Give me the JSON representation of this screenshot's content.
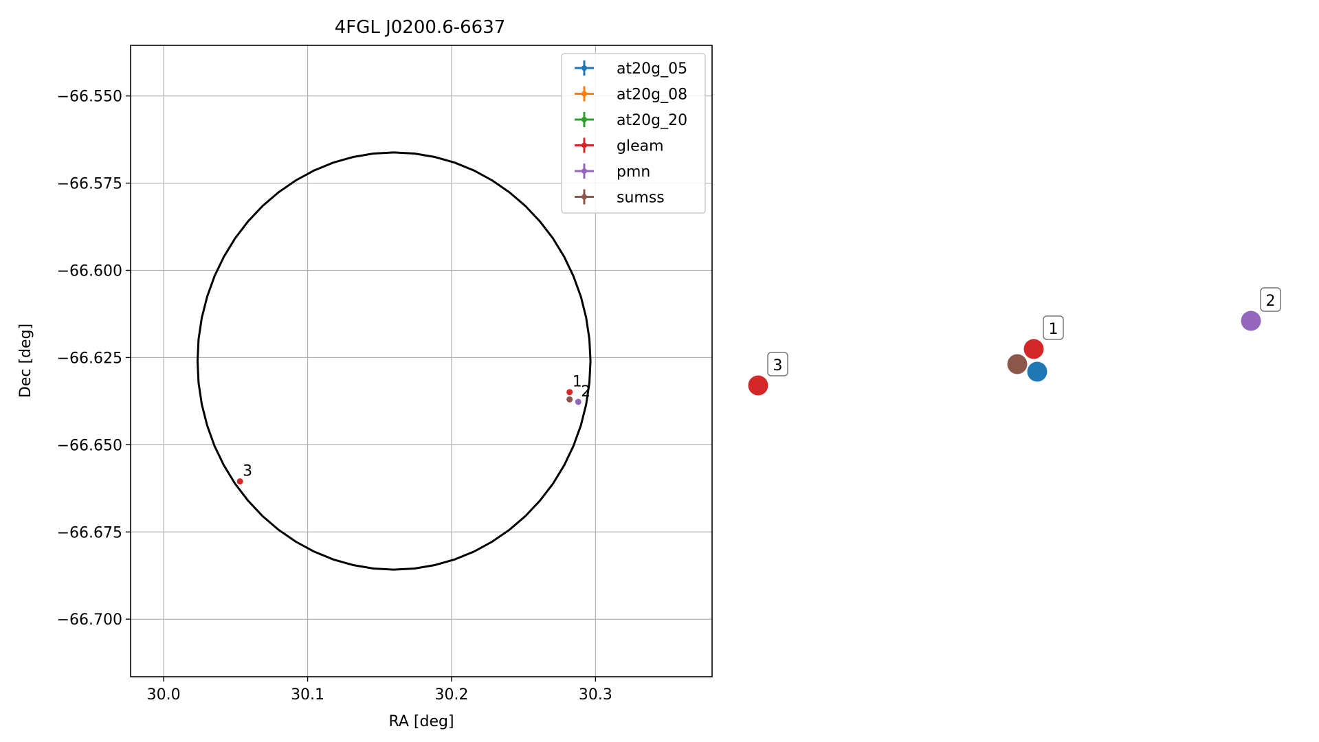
{
  "chart_data": [
    {
      "type": "scatter",
      "title": "4FGL J0200.6-6637",
      "xlabel": "RA [deg]",
      "ylabel": "Dec [deg]",
      "xlim": [
        29.977,
        30.381
      ],
      "ylim": [
        -66.7165,
        -66.5355
      ],
      "grid": true,
      "x_ticks": [
        30.0,
        30.1,
        30.2,
        30.3
      ],
      "x_tick_labels": [
        "30.0",
        "30.1",
        "30.2",
        "30.3"
      ],
      "y_ticks": [
        -66.55,
        -66.575,
        -66.6,
        -66.625,
        -66.65,
        -66.675,
        -66.7
      ],
      "y_tick_labels": [
        "−66.550",
        "−66.575",
        "−66.600",
        "−66.625",
        "−66.650",
        "−66.675",
        "−66.700"
      ],
      "legend_position": "top-right",
      "ellipse": {
        "center": [
          30.16,
          -66.626
        ],
        "semi_axis_ra": 0.1365,
        "semi_axis_dec": 0.0598,
        "color": "#000000"
      },
      "series": [
        {
          "name": "at20g_05",
          "color": "#1f77b4",
          "points": []
        },
        {
          "name": "at20g_08",
          "color": "#ff7f0e",
          "points": []
        },
        {
          "name": "at20g_20",
          "color": "#2ca02c",
          "points": []
        },
        {
          "name": "gleam",
          "color": "#d62728",
          "points": [
            {
              "ra": 30.282,
              "dec": -66.6349,
              "label": "1"
            },
            {
              "ra": 30.053,
              "dec": -66.6605,
              "label": "3"
            }
          ]
        },
        {
          "name": "pmn",
          "color": "#9467bd",
          "points": [
            {
              "ra": 30.288,
              "dec": -66.6377,
              "label": "2"
            }
          ]
        },
        {
          "name": "sumss",
          "color": "#8c564b",
          "points": [
            {
              "ra": 30.282,
              "dec": -66.637,
              "label": ""
            }
          ]
        }
      ]
    },
    {
      "type": "scatter",
      "title": "",
      "points": [
        {
          "series": "gleam",
          "color": "#d62728",
          "label": "3"
        },
        {
          "series": "sumss",
          "color": "#8c564b",
          "label": ""
        },
        {
          "series": "gleam",
          "color": "#d62728",
          "label": "1"
        },
        {
          "series": "at20g_05",
          "color": "#1f77b4",
          "label": ""
        },
        {
          "series": "pmn",
          "color": "#9467bd",
          "label": "2"
        }
      ]
    }
  ]
}
